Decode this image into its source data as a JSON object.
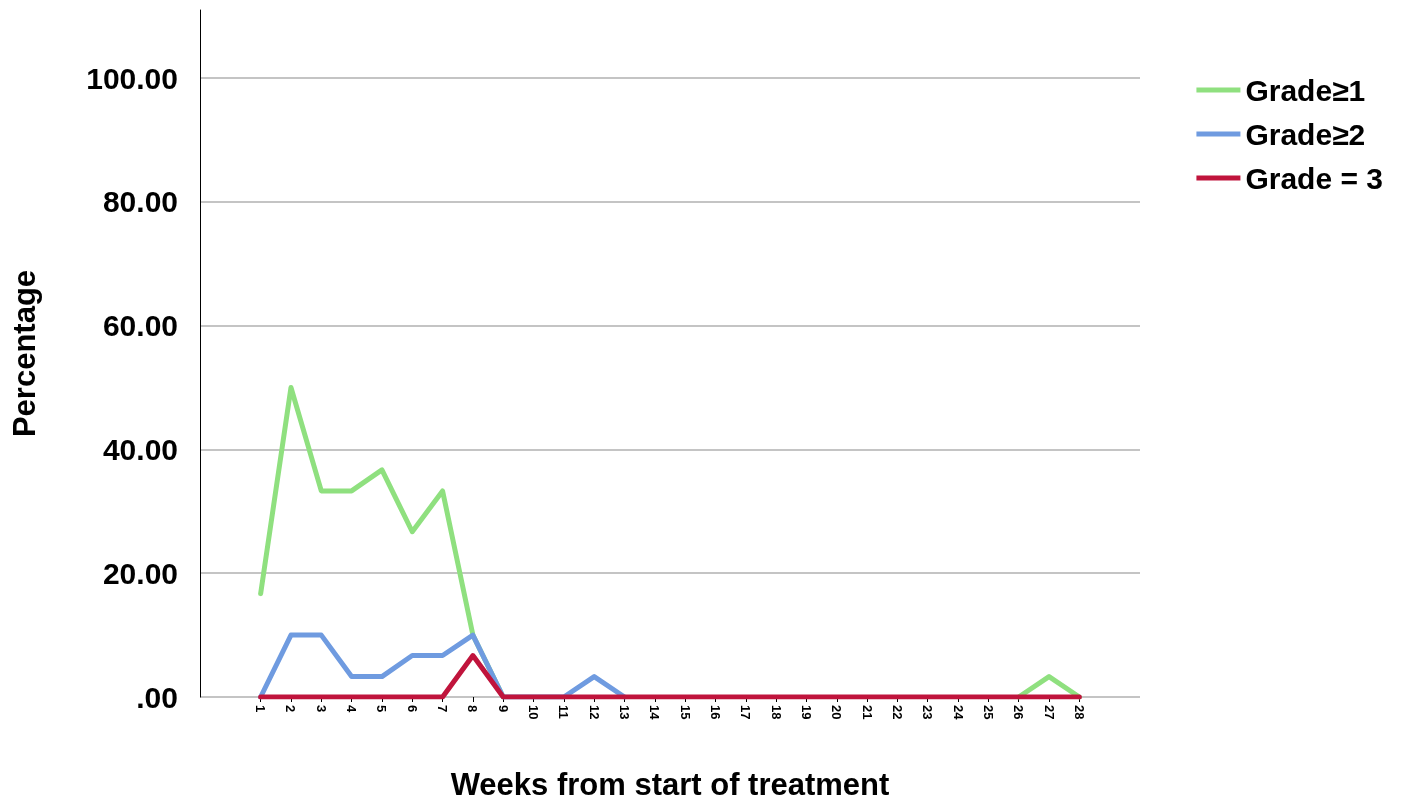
{
  "chart_data": {
    "type": "line",
    "xlabel": "Weeks from start of treatment",
    "ylabel": "Percentage",
    "categories": [
      "1",
      "2",
      "3",
      "4",
      "5",
      "6",
      "7",
      "8",
      "9",
      "10",
      "11",
      "12",
      "13",
      "14",
      "15",
      "16",
      "17",
      "18",
      "19",
      "20",
      "21",
      "22",
      "23",
      "24",
      "25",
      "26",
      "27",
      "28"
    ],
    "series": [
      {
        "name": "Grade≥1",
        "color": "#8fe07f",
        "values": [
          16.7,
          50,
          33.3,
          33.3,
          36.7,
          26.7,
          33.3,
          10,
          0,
          null,
          null,
          null,
          null,
          null,
          null,
          null,
          null,
          null,
          null,
          null,
          null,
          null,
          null,
          null,
          null,
          0,
          3.3,
          0
        ]
      },
      {
        "name": "Grade≥2",
        "color": "#6f9be0",
        "values": [
          0,
          10,
          10,
          3.3,
          3.3,
          6.7,
          6.7,
          10,
          0,
          0,
          0,
          3.3,
          0,
          null,
          null,
          null,
          null,
          null,
          null,
          null,
          null,
          null,
          null,
          null,
          null,
          null,
          null,
          null
        ]
      },
      {
        "name": "Grade = 3",
        "color": "#c0143c",
        "values": [
          0,
          0,
          0,
          0,
          0,
          0,
          0,
          6.7,
          0,
          0,
          0,
          0,
          0,
          0,
          0,
          0,
          0,
          0,
          0,
          0,
          0,
          0,
          0,
          0,
          0,
          0,
          0,
          0
        ]
      }
    ],
    "ylim": [
      0,
      111
    ],
    "yticks": [
      {
        "value": 0,
        "label": ".00"
      },
      {
        "value": 20,
        "label": "20.00"
      },
      {
        "value": 40,
        "label": "40.00"
      },
      {
        "value": 60,
        "label": "60.00"
      },
      {
        "value": 80,
        "label": "80.00"
      },
      {
        "value": 100,
        "label": "100.00"
      }
    ],
    "grid": "y",
    "legend": "top right",
    "marker": "none",
    "line_style": "solid"
  }
}
